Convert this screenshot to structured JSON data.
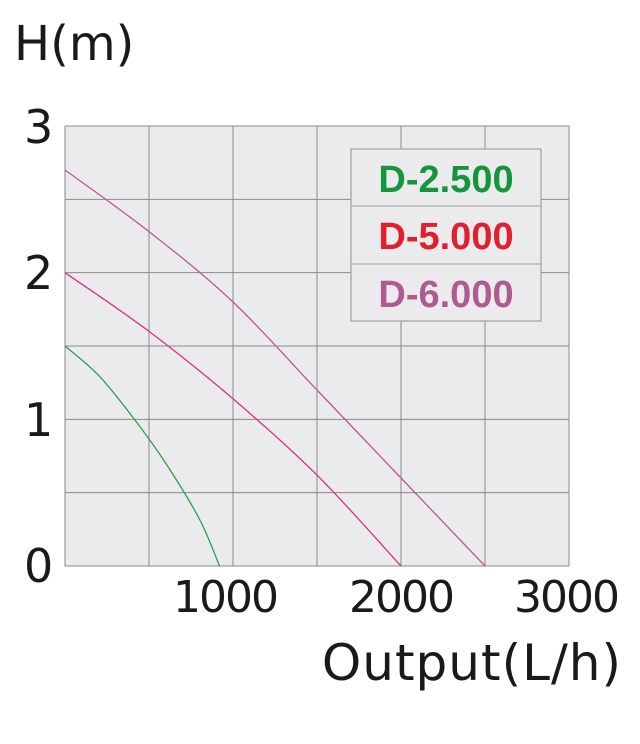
{
  "chart_data": {
    "type": "line",
    "ylabel": "H(m)",
    "xlabel": "Output(L/h)",
    "xlim": [
      0,
      3000
    ],
    "ylim": [
      0,
      3
    ],
    "x_ticks": [
      "1000",
      "2000",
      "3000"
    ],
    "y_ticks": [
      "0",
      "1",
      "2",
      "3"
    ],
    "grid": true,
    "legend_position": "top-right",
    "series": [
      {
        "name": "D-2.500",
        "color": "#2e9e4f",
        "label_color": "#16963c",
        "points": [
          [
            0,
            1.5
          ],
          [
            200,
            1.3
          ],
          [
            400,
            1.02
          ],
          [
            600,
            0.7
          ],
          [
            800,
            0.32
          ],
          [
            920,
            0.0
          ]
        ]
      },
      {
        "name": "D-5.000",
        "color": "#d6337a",
        "label_color": "#e0202e",
        "points": [
          [
            0,
            2.0
          ],
          [
            500,
            1.6
          ],
          [
            1000,
            1.14
          ],
          [
            1500,
            0.62
          ],
          [
            2000,
            0.0
          ]
        ]
      },
      {
        "name": "D-6.000",
        "color": "#b45c94",
        "label_color": "#b05a92",
        "points": [
          [
            0,
            2.7
          ],
          [
            500,
            2.28
          ],
          [
            1000,
            1.8
          ],
          [
            1500,
            1.2
          ],
          [
            2000,
            0.6
          ],
          [
            2500,
            0.0
          ]
        ]
      }
    ]
  },
  "colors": {
    "plot_background": "#ebebed",
    "grid": "#8a8a8a",
    "legend_border": "#a0a0a0"
  }
}
